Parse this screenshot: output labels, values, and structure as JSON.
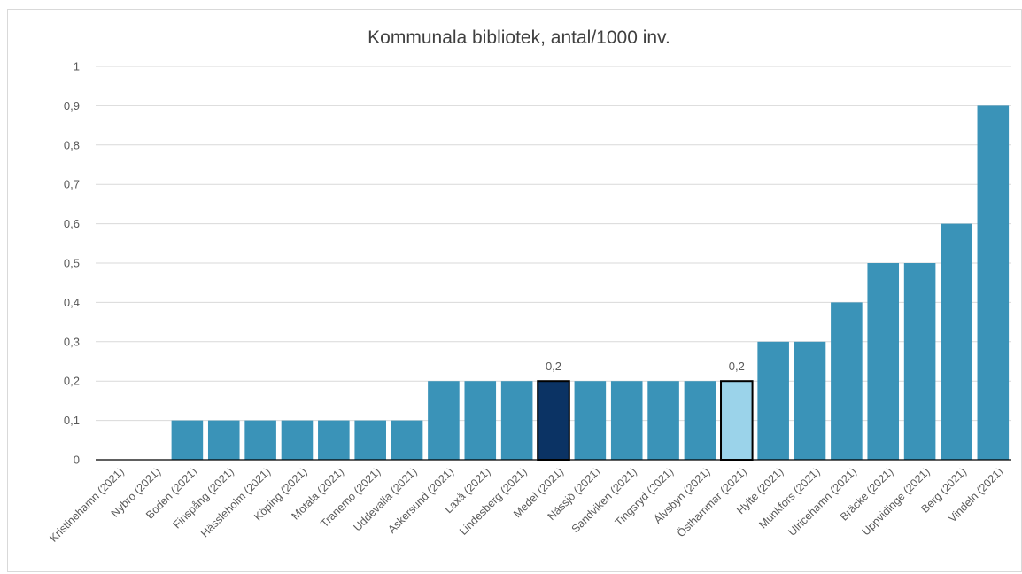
{
  "chart_data": {
    "type": "bar",
    "title": "Kommunala bibliotek, antal/1000 inv.",
    "xlabel": "",
    "ylabel": "",
    "ylim": [
      0,
      1
    ],
    "yticks": [
      "0",
      "0,1",
      "0,2",
      "0,3",
      "0,4",
      "0,5",
      "0,6",
      "0,7",
      "0,8",
      "0,9",
      "1"
    ],
    "grid": true,
    "categories": [
      "Kristinehamn (2021)",
      "Nybro (2021)",
      "Boden (2021)",
      "Finspång (2021)",
      "Hässleholm (2021)",
      "Köping (2021)",
      "Motala (2021)",
      "Tranemo (2021)",
      "Uddevalla (2021)",
      "Askersund (2021)",
      "Laxå (2021)",
      "Lindesberg (2021)",
      "Medel (2021)",
      "Nässjö (2021)",
      "Sandviken (2021)",
      "Tingsryd (2021)",
      "Älvsbyn (2021)",
      "Östhammar (2021)",
      "Hylte (2021)",
      "Munkfors (2021)",
      "Ulricehamn (2021)",
      "Bräcke (2021)",
      "Uppvidinge (2021)",
      "Berg (2021)",
      "Vindeln (2021)"
    ],
    "values": [
      0,
      0,
      0.1,
      0.1,
      0.1,
      0.1,
      0.1,
      0.1,
      0.1,
      0.2,
      0.2,
      0.2,
      0.2,
      0.2,
      0.2,
      0.2,
      0.2,
      0.2,
      0.3,
      0.3,
      0.4,
      0.5,
      0.5,
      0.6,
      0.9
    ],
    "colors": {
      "default": "#3a93b8",
      "highlight_medel": "#0b3364",
      "highlight_osthammar": "#9bd3ea",
      "highlight_border": "#000000",
      "grid": "#d9d9d9",
      "axis": "#000000"
    },
    "highlights": [
      {
        "category": "Medel (2021)",
        "color_key": "highlight_medel",
        "label": "0,2"
      },
      {
        "category": "Östhammar (2021)",
        "color_key": "highlight_osthammar",
        "label": "0,2"
      }
    ]
  }
}
